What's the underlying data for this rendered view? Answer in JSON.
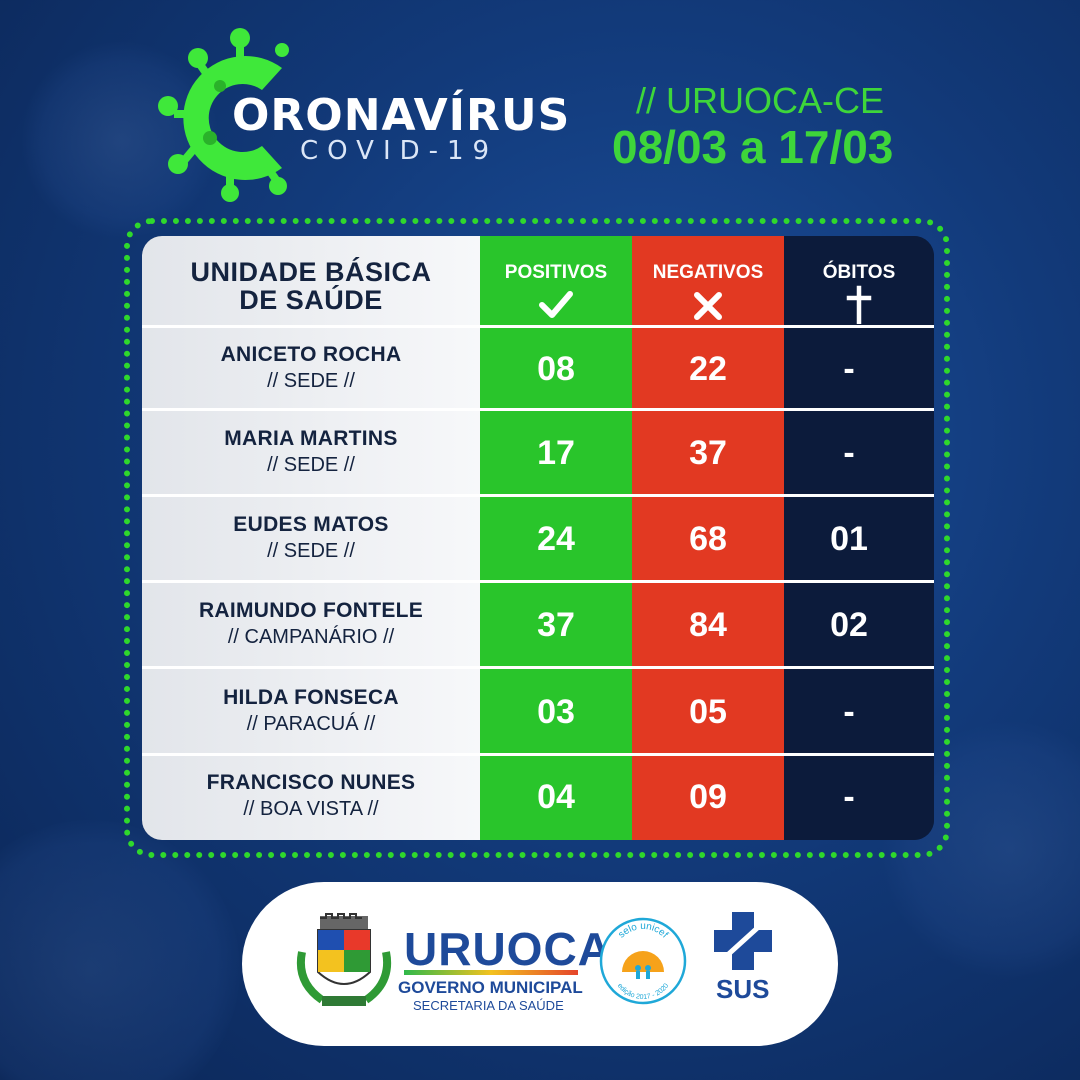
{
  "header": {
    "brand_title": "ORONAVÍRUS",
    "brand_subtitle": "COVID-19",
    "city": "// URUOCA-CE",
    "date_range": "08/03 a 17/03"
  },
  "table": {
    "headers": {
      "unit": [
        "UNIDADE BÁSICA",
        "DE SAÚDE"
      ],
      "positivos": "POSITIVOS",
      "negativos": "NEGATIVOS",
      "obitos": "ÓBITOS"
    },
    "rows": [
      {
        "name": "ANICETO ROCHA",
        "locality": "// SEDE //",
        "positivos": "08",
        "negativos": "22",
        "obitos": "-"
      },
      {
        "name": "MARIA MARTINS",
        "locality": "// SEDE //",
        "positivos": "17",
        "negativos": "37",
        "obitos": "-"
      },
      {
        "name": "EUDES MATOS",
        "locality": "// SEDE //",
        "positivos": "24",
        "negativos": "68",
        "obitos": "01"
      },
      {
        "name": "RAIMUNDO FONTELE",
        "locality": "// CAMPANÁRIO //",
        "positivos": "37",
        "negativos": "84",
        "obitos": "02"
      },
      {
        "name": "HILDA FONSECA",
        "locality": "// PARACUÁ //",
        "positivos": "03",
        "negativos": "05",
        "obitos": "-"
      },
      {
        "name": "FRANCISCO NUNES",
        "locality": "// BOA VISTA //",
        "positivos": "04",
        "negativos": "09",
        "obitos": "-"
      }
    ]
  },
  "footer": {
    "municipality": "URUOCA",
    "government": "GOVERNO MUNICIPAL",
    "department": "SECRETARIA DA SAÚDE",
    "unicef_seal": "selo unicef",
    "unicef_edition": "edição 2017 - 2020",
    "sus": "SUS"
  },
  "colors": {
    "accent_green": "#3ed63a",
    "positive_green": "#29c52b",
    "negative_red": "#e23922",
    "deaths_navy": "#0c1b3b",
    "background_blue": "#123a7a"
  },
  "icons": {
    "virus": "virus-c-icon",
    "positive": "check-icon",
    "negative": "x-icon",
    "deaths": "cross-icon"
  }
}
